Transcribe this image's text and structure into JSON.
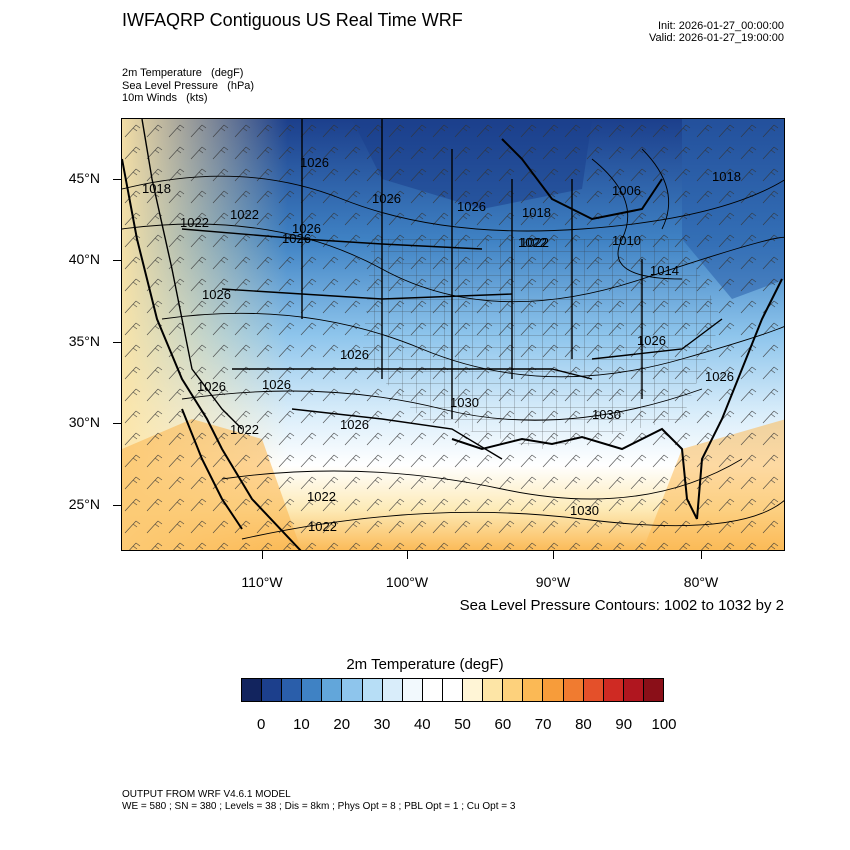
{
  "header": {
    "title": "IWFAQRP Contiguous US Real Time WRF",
    "init": "Init: 2026-01-27_00:00:00",
    "valid": "Valid: 2026-01-27_19:00:00"
  },
  "fields": [
    "2m Temperature   (degF)",
    "Sea Level Pressure   (hPa)",
    "10m Winds   (kts)"
  ],
  "axes": {
    "lat_labels": [
      "45°N",
      "40°N",
      "35°N",
      "30°N",
      "25°N"
    ],
    "lon_labels": [
      "110°W",
      "100°W",
      "90°W",
      "80°W"
    ]
  },
  "isobar_labels": [
    "1026",
    "1018",
    "1022",
    "1022",
    "1026",
    "1026",
    "1026",
    "1026",
    "1026",
    "1018",
    "1022",
    "1006",
    "1010",
    "1014",
    "1026",
    "1026",
    "1026",
    "1022",
    "1026",
    "1030",
    "1030",
    "1018",
    "1022",
    "1026",
    "1022",
    "1022",
    "1026",
    "1030"
  ],
  "slp_caption": "Sea Level Pressure Contours: 1002 to 1032 by 2",
  "colorbar": {
    "title": "2m Temperature  (degF)",
    "colors": [
      "#12245e",
      "#1c3f8c",
      "#2a5eaa",
      "#3f82c4",
      "#62a6da",
      "#8ec5ec",
      "#b7def6",
      "#d9edfa",
      "#f2f9fd",
      "#ffffff",
      "#ffffff",
      "#fff5d6",
      "#fde5a6",
      "#fdd17c",
      "#fbb955",
      "#f79c3a",
      "#f07b30",
      "#e4502a",
      "#cf2a23",
      "#b0161f",
      "#8a0f18"
    ],
    "labels": [
      "0",
      "10",
      "20",
      "30",
      "40",
      "50",
      "60",
      "70",
      "80",
      "90",
      "100"
    ]
  },
  "footer": {
    "line1": "OUTPUT FROM WRF V4.6.1 MODEL",
    "line2": "WE = 580 ; SN = 380 ; Levels = 38 ; Dis = 8km ; Phys Opt = 8 ; PBL Opt = 1 ; Cu Opt = 3"
  }
}
